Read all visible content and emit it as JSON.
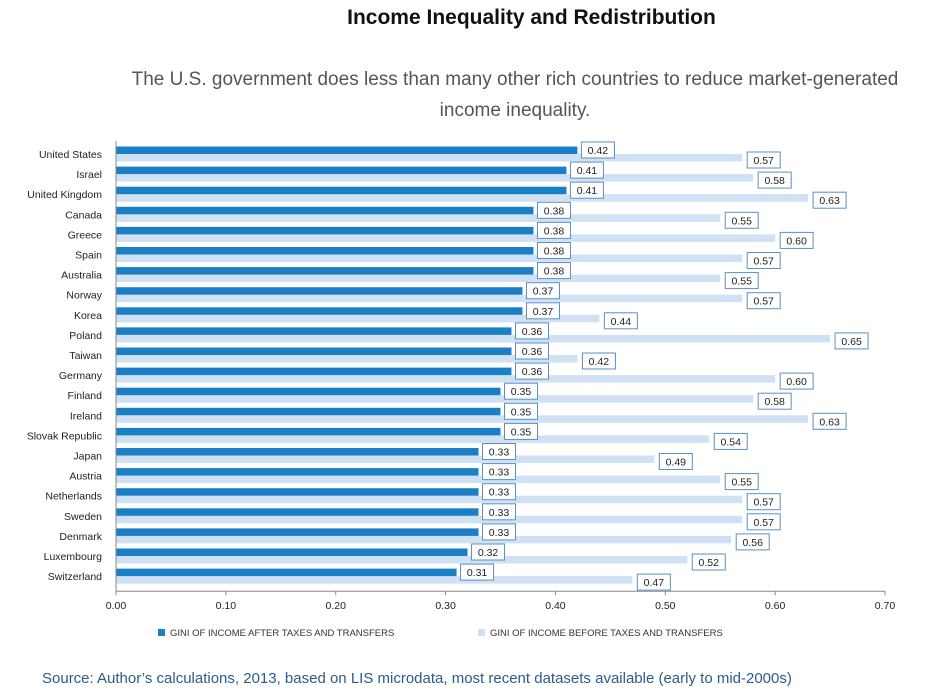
{
  "chart_data": {
    "type": "bar",
    "orientation": "horizontal",
    "title": "Income Inequality and Redistribution",
    "subtitle": "The U.S. government does less than many other rich countries to reduce market-generated income inequality.",
    "categories": [
      "United States",
      "Israel",
      "United Kingdom",
      "Canada",
      "Greece",
      "Spain",
      "Australia",
      "Norway",
      "Korea",
      "Poland",
      "Taiwan",
      "Germany",
      "Finland",
      "Ireland",
      "Slovak Republic",
      "Japan",
      "Austria",
      "Netherlands",
      "Sweden",
      "Denmark",
      "Luxembourg",
      "Switzerland"
    ],
    "series": [
      {
        "name": "GINI OF INCOME AFTER TAXES AND TRANSFERS",
        "color": "#1b7fc6",
        "values": [
          0.42,
          0.41,
          0.41,
          0.38,
          0.38,
          0.38,
          0.38,
          0.37,
          0.37,
          0.36,
          0.36,
          0.36,
          0.35,
          0.35,
          0.35,
          0.33,
          0.33,
          0.33,
          0.33,
          0.33,
          0.32,
          0.31
        ],
        "labels": [
          "0.42",
          "0.41",
          "0.41",
          "0.38",
          "0.38",
          "0.38",
          "0.38",
          "0.37",
          "0.37",
          "0.36",
          "0.36",
          "0.36",
          "0.35",
          "0.35",
          "0.35",
          "0.33",
          "0.33",
          "0.33",
          "0.33",
          "0.33",
          "0.32",
          "0.31"
        ]
      },
      {
        "name": "GINI OF INCOME BEFORE TAXES AND TRANSFERS",
        "color": "#cfe1f3",
        "values": [
          0.57,
          0.58,
          0.63,
          0.55,
          0.6,
          0.57,
          0.55,
          0.57,
          0.44,
          0.65,
          0.42,
          0.6,
          0.58,
          0.63,
          0.54,
          0.49,
          0.55,
          0.57,
          0.57,
          0.56,
          0.52,
          0.47
        ],
        "labels": [
          "0.57",
          "0.58",
          "0.63",
          "0.55",
          "0.60",
          "0.57",
          "0.55",
          "0.57",
          "0.44",
          "0.65",
          "0.42",
          "0.60",
          "0.58",
          "0.63",
          "0.54",
          "0.49",
          "0.55",
          "0.57",
          "0.57",
          "0.56",
          "0.52",
          "0.47"
        ]
      }
    ],
    "x_ticks": [
      0,
      0.1,
      0.2,
      0.3,
      0.4,
      0.5,
      0.6,
      0.7
    ],
    "x_tick_labels": [
      "0.00",
      "0.10",
      "0.20",
      "0.30",
      "0.40",
      "0.50",
      "0.60",
      "0.70"
    ],
    "xlim": [
      0,
      0.7
    ],
    "legend": "bottom",
    "grid": false
  },
  "source": "Source: Author’s calculations, 2013, based on LIS microdata, most recent datasets available (early to mid-2000s)"
}
